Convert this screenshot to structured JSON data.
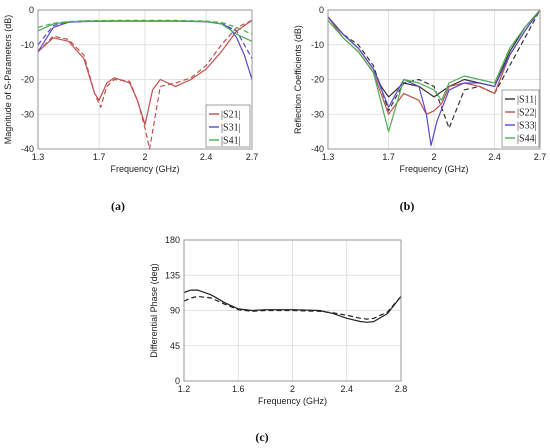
{
  "chart_data": [
    {
      "panel": "(a)",
      "type": "line",
      "xlabel": "Frequency (GHz)",
      "ylabel": "Magnitude of S-Parameters (dB)",
      "xlim": [
        1.3,
        2.7
      ],
      "ylim": [
        -40,
        0
      ],
      "xticks": [
        1.3,
        1.7,
        2,
        2.4,
        2.7
      ],
      "xtick_labels": [
        "1.3",
        "1.7",
        "2",
        "2.4",
        "2.7"
      ],
      "yticks": [
        -40,
        -30,
        -20,
        -10,
        0
      ],
      "ytick_labels": [
        "-40",
        "-30",
        "-20",
        "-10",
        "0"
      ],
      "grid": true,
      "legend": "bottom-right",
      "legend_entries": [
        {
          "label": "|S21|",
          "color": "#c0504d"
        },
        {
          "label": "|S31|",
          "color": "#5b4ac9"
        },
        {
          "label": "|S41|",
          "color": "#4caf50"
        }
      ],
      "series": [
        {
          "name": "|S21|",
          "color": "#c0504d",
          "style": "solid",
          "x": [
            1.3,
            1.4,
            1.5,
            1.6,
            1.67,
            1.7,
            1.75,
            1.8,
            1.9,
            1.95,
            2.0,
            2.05,
            2.1,
            2.2,
            2.3,
            2.4,
            2.5,
            2.6,
            2.7
          ],
          "y": [
            -12,
            -8,
            -9,
            -14,
            -24,
            -26,
            -21,
            -19.5,
            -21,
            -26,
            -33,
            -23,
            -20,
            -22,
            -20,
            -17,
            -12,
            -6,
            -3
          ]
        },
        {
          "name": "|S21| (dashed)",
          "color": "#c0504d",
          "style": "dashed",
          "x": [
            1.3,
            1.4,
            1.5,
            1.6,
            1.67,
            1.71,
            1.75,
            1.8,
            1.9,
            1.95,
            2.0,
            2.03,
            2.1,
            2.2,
            2.3,
            2.4,
            2.5,
            2.6,
            2.7
          ],
          "y": [
            -12,
            -7.5,
            -8.5,
            -13,
            -24,
            -28,
            -22,
            -20,
            -20.5,
            -26,
            -34,
            -40,
            -22,
            -21,
            -19.5,
            -16,
            -10,
            -5,
            -3
          ]
        },
        {
          "name": "|S31|",
          "color": "#5b4ac9",
          "style": "solid",
          "x": [
            1.3,
            1.4,
            1.5,
            1.6,
            1.8,
            2.0,
            2.2,
            2.4,
            2.5,
            2.55,
            2.6,
            2.65,
            2.7
          ],
          "y": [
            -12,
            -5,
            -3.5,
            -3.3,
            -3.2,
            -3.2,
            -3.2,
            -3.4,
            -4,
            -5,
            -8,
            -13,
            -20
          ]
        },
        {
          "name": "|S31| (dashed)",
          "color": "#5b4ac9",
          "style": "dashed",
          "x": [
            1.3,
            1.4,
            1.5,
            1.6,
            1.8,
            2.0,
            2.2,
            2.4,
            2.5,
            2.6,
            2.7
          ],
          "y": [
            -10,
            -4.5,
            -3.5,
            -3.3,
            -3.2,
            -3.2,
            -3.2,
            -3.3,
            -3.8,
            -6,
            -14
          ]
        },
        {
          "name": "|S41|",
          "color": "#4caf50",
          "style": "solid",
          "x": [
            1.3,
            1.4,
            1.5,
            1.6,
            1.8,
            2.0,
            2.2,
            2.4,
            2.5,
            2.6,
            2.7
          ],
          "y": [
            -6,
            -4,
            -3.4,
            -3.2,
            -3.1,
            -3.1,
            -3.1,
            -3.3,
            -4,
            -7,
            -9
          ]
        },
        {
          "name": "|S41| (dashed)",
          "color": "#4caf50",
          "style": "dashed",
          "x": [
            1.3,
            1.4,
            1.5,
            1.6,
            1.8,
            2.0,
            2.2,
            2.4,
            2.5,
            2.6,
            2.7
          ],
          "y": [
            -5,
            -3.8,
            -3.3,
            -3.1,
            -3.0,
            -3.0,
            -3.0,
            -3.2,
            -3.6,
            -5,
            -7
          ]
        }
      ]
    },
    {
      "panel": "(b)",
      "type": "line",
      "xlabel": "Frequency (GHz)",
      "ylabel": "Reflection Coefficients (dB)",
      "xlim": [
        1.3,
        2.7
      ],
      "ylim": [
        -40,
        0
      ],
      "xticks": [
        1.3,
        1.7,
        2,
        2.4,
        2.7
      ],
      "xtick_labels": [
        "1.3",
        "1.7",
        "2",
        "2.4",
        "2.7"
      ],
      "yticks": [
        -40,
        -30,
        -20,
        -10,
        0
      ],
      "ytick_labels": [
        "-40",
        "-30",
        "-20",
        "-10",
        "0"
      ],
      "grid": true,
      "legend": "bottom-right",
      "legend_entries": [
        {
          "label": "|S11|",
          "color": "#333333"
        },
        {
          "label": "|S22|",
          "color": "#c0504d"
        },
        {
          "label": "|S33|",
          "color": "#5b4ac9"
        },
        {
          "label": "|S44|",
          "color": "#4caf50"
        }
      ],
      "series": [
        {
          "name": "|S11|",
          "color": "#333333",
          "style": "solid",
          "x": [
            1.3,
            1.4,
            1.5,
            1.6,
            1.65,
            1.7,
            1.8,
            1.9,
            2.0,
            2.1,
            2.2,
            2.3,
            2.4,
            2.5,
            2.6,
            2.7
          ],
          "y": [
            -2,
            -7,
            -11,
            -17,
            -22,
            -25,
            -21,
            -22,
            -25,
            -22,
            -20,
            -21,
            -22,
            -12,
            -5,
            0
          ]
        },
        {
          "name": "|S11| (dashed)",
          "color": "#333333",
          "style": "dashed",
          "x": [
            1.3,
            1.4,
            1.5,
            1.6,
            1.7,
            1.8,
            1.9,
            2.0,
            2.1,
            2.2,
            2.3,
            2.4,
            2.5,
            2.6,
            2.7
          ],
          "y": [
            -2,
            -7,
            -10,
            -16,
            -29,
            -21,
            -20,
            -22,
            -34,
            -23,
            -22,
            -24,
            -16,
            -8,
            0
          ]
        },
        {
          "name": "|S22|",
          "color": "#c0504d",
          "style": "solid",
          "x": [
            1.3,
            1.4,
            1.5,
            1.6,
            1.7,
            1.8,
            1.9,
            1.95,
            2.0,
            2.05,
            2.1,
            2.2,
            2.3,
            2.4,
            2.5,
            2.6,
            2.7
          ],
          "y": [
            -2,
            -8,
            -12,
            -18,
            -30,
            -24,
            -26,
            -30,
            -29,
            -27,
            -22,
            -21,
            -22,
            -24,
            -13,
            -6,
            0
          ]
        },
        {
          "name": "|S33|",
          "color": "#5b4ac9",
          "style": "solid",
          "x": [
            1.3,
            1.4,
            1.5,
            1.6,
            1.7,
            1.8,
            1.9,
            1.95,
            1.98,
            2.02,
            2.1,
            2.2,
            2.3,
            2.4,
            2.5,
            2.6,
            2.7
          ],
          "y": [
            -2,
            -7,
            -11,
            -17,
            -28,
            -20,
            -22,
            -30,
            -39,
            -32,
            -23,
            -21,
            -21,
            -22,
            -13,
            -6,
            0
          ]
        },
        {
          "name": "|S44|",
          "color": "#4caf50",
          "style": "solid",
          "x": [
            1.3,
            1.4,
            1.5,
            1.6,
            1.7,
            1.8,
            1.9,
            2.0,
            2.05,
            2.1,
            2.2,
            2.3,
            2.4,
            2.5,
            2.6,
            2.7
          ],
          "y": [
            -3,
            -8,
            -12,
            -18,
            -35,
            -20,
            -21,
            -23,
            -26,
            -21,
            -19,
            -20,
            -21,
            -11,
            -5,
            0
          ]
        }
      ]
    },
    {
      "panel": "(c)",
      "type": "line",
      "xlabel": "Frequency (GHz)",
      "ylabel": "Differential Phase (deg)",
      "xlim": [
        1.2,
        2.8
      ],
      "ylim": [
        0,
        180
      ],
      "xticks": [
        1.2,
        1.6,
        2,
        2.4,
        2.8
      ],
      "xtick_labels": [
        "1.2",
        "1.6",
        "2",
        "2.4",
        "2.8"
      ],
      "yticks": [
        0,
        45,
        90,
        135,
        180
      ],
      "ytick_labels": [
        "0",
        "45",
        "90",
        "135",
        "180"
      ],
      "grid": true,
      "series": [
        {
          "name": "",
          "color": "#222222",
          "style": "solid",
          "x": [
            1.2,
            1.25,
            1.3,
            1.4,
            1.5,
            1.6,
            1.7,
            1.8,
            2.0,
            2.2,
            2.3,
            2.4,
            2.5,
            2.55,
            2.6,
            2.7,
            2.8
          ],
          "y": [
            113,
            116,
            116,
            110,
            100,
            92,
            90,
            91,
            91,
            90,
            86,
            80,
            76,
            75,
            76,
            86,
            108
          ]
        },
        {
          "name": "",
          "color": "#222222",
          "style": "dashed",
          "x": [
            1.2,
            1.25,
            1.3,
            1.4,
            1.5,
            1.6,
            1.7,
            1.8,
            2.0,
            2.2,
            2.3,
            2.4,
            2.5,
            2.55,
            2.6,
            2.7,
            2.8
          ],
          "y": [
            102,
            106,
            108,
            106,
            98,
            91,
            89,
            90,
            90,
            89,
            87,
            84,
            80,
            79,
            80,
            88,
            108
          ]
        }
      ]
    }
  ],
  "captions": {
    "a": "(a)",
    "b": "(b)",
    "c": "(c)"
  }
}
